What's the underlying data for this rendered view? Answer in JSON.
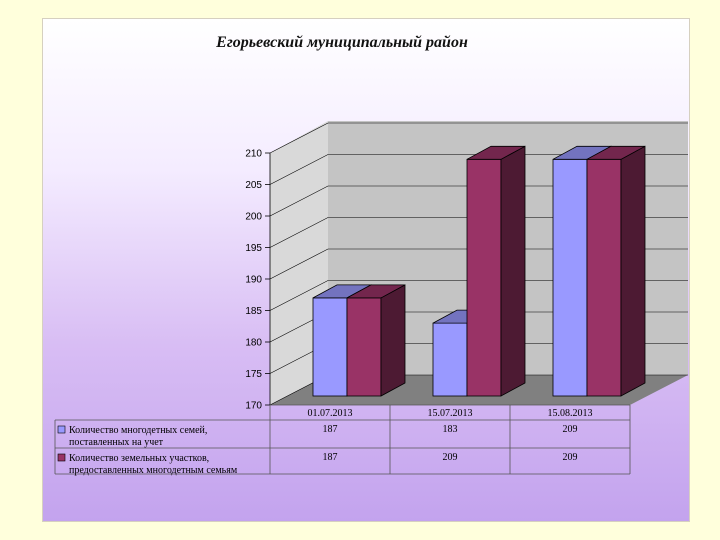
{
  "chart_data": {
    "type": "bar",
    "title": "Егорьевский муниципальный  район",
    "categories": [
      "01.07.2013",
      "15.07.2013",
      "15.08.2013"
    ],
    "series": [
      {
        "name": "Количество многодетных семей, поставленных на учет",
        "name_lines": [
          "Количество многодетных семей,",
          "поставленных на учет"
        ],
        "values": [
          187,
          183,
          209
        ],
        "color": "#9999ff"
      },
      {
        "name": "Количество земельных участков, предоставленных многодетным семьям",
        "name_lines": [
          "Количество земельных участков,",
          "предоставленных многодетным семьям"
        ],
        "values": [
          187,
          209,
          209
        ],
        "color": "#993366"
      }
    ],
    "y_ticks": [
      170,
      175,
      180,
      185,
      190,
      195,
      200,
      205,
      210
    ],
    "ylim": [
      170,
      210
    ],
    "grid": true,
    "legend_placement": "data-table-left",
    "data_table": true
  }
}
